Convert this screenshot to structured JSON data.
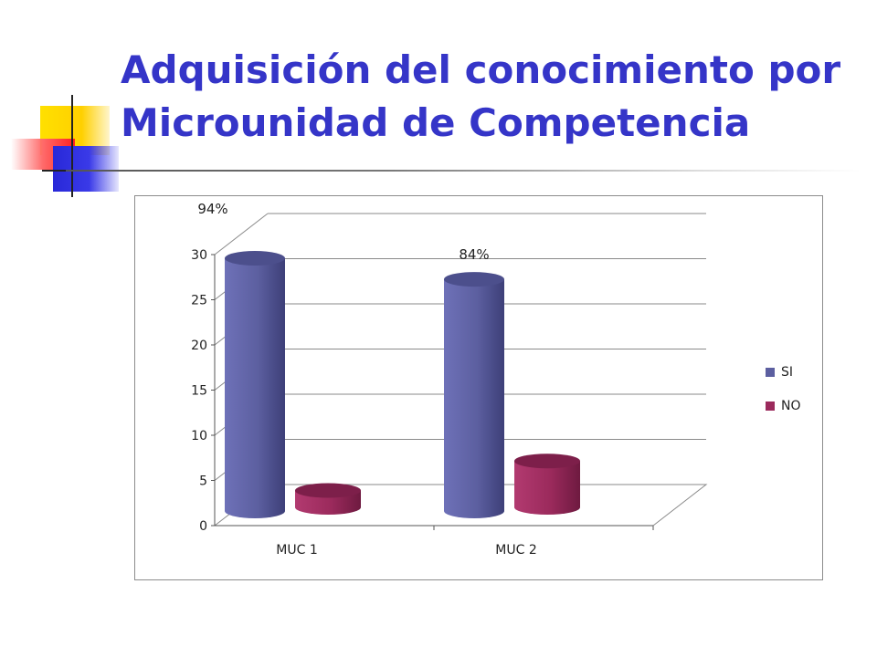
{
  "slide": {
    "title_line1": "Adquisición del conocimiento por",
    "title_line2": "Microunidad de Competencia",
    "title_color": "#3535c8"
  },
  "chart_data": {
    "type": "bar",
    "style": "3d-cylinder",
    "categories": [
      "MUC 1",
      "MUC 2"
    ],
    "series": [
      {
        "name": "SI",
        "values": [
          30,
          27.5
        ],
        "color": "#5c5fa0"
      },
      {
        "name": "NO",
        "values": [
          2,
          5.5
        ],
        "color": "#9b2a5c"
      }
    ],
    "data_labels": [
      "94%",
      "84%"
    ],
    "ylim": [
      0,
      30
    ],
    "yticks": [
      0,
      5,
      10,
      15,
      20,
      25,
      30
    ],
    "grid": true,
    "legend_position": "right"
  }
}
